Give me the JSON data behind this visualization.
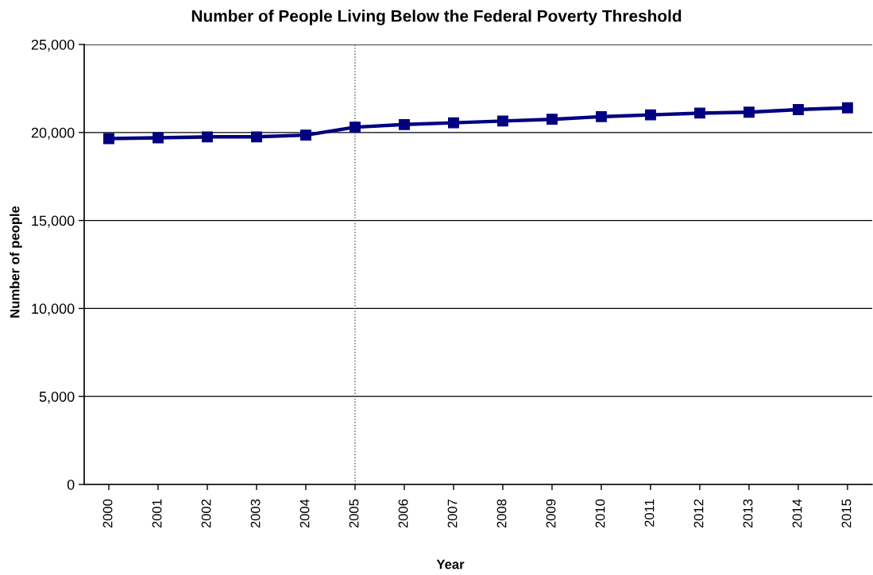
{
  "chart_data": {
    "type": "line",
    "title": "Number of People Living Below the Federal Poverty Threshold",
    "xlabel": "Year",
    "ylabel": "Number of people",
    "categories": [
      "2000",
      "2001",
      "2002",
      "2003",
      "2004",
      "2005",
      "2006",
      "2007",
      "2008",
      "2009",
      "2010",
      "2011",
      "2012",
      "2013",
      "2014",
      "2015"
    ],
    "series": [
      {
        "color": "#000080",
        "values": [
          19650,
          19700,
          19750,
          19750,
          19850,
          20300,
          20450,
          20550,
          20650,
          20750,
          20900,
          21000,
          21100,
          21150,
          21300,
          21400
        ]
      }
    ],
    "ylim": [
      0,
      25000
    ],
    "yticks": [
      {
        "value": 0,
        "label": "0"
      },
      {
        "value": 5000,
        "label": "5,000"
      },
      {
        "value": 10000,
        "label": "10,000"
      },
      {
        "value": 15000,
        "label": "15,000"
      },
      {
        "value": 20000,
        "label": "20,000"
      },
      {
        "value": 25000,
        "label": "25,000"
      }
    ],
    "ref_lines": [
      {
        "axis": "x",
        "value": "2005",
        "color": "#555555",
        "line_style": "dotted"
      }
    ],
    "grid": "y",
    "marker": "square",
    "line_style": "solid"
  }
}
